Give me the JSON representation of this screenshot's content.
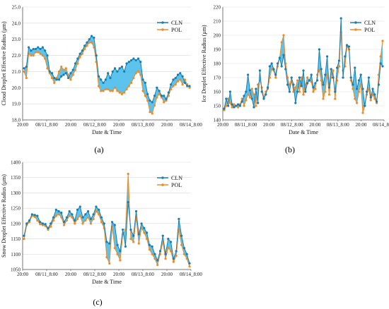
{
  "colors": {
    "cln": "#1a7fb0",
    "pol": "#f08a24",
    "fill": "#3fb8ea",
    "gridline": "#d9d9d9"
  },
  "chart_data": [
    {
      "type": "line",
      "panel_label": "(a)",
      "ylabel": "Cloud Droplet Effective Radius  (μm)",
      "xlabel": "Date & Time",
      "xticks": [
        "20:00",
        "08/11_8:00",
        "20:00",
        "08/12_8:00",
        "20:00",
        "08/13_8:00",
        "20:00",
        "08/14_8:00"
      ],
      "ylim": [
        18.0,
        25.0
      ],
      "yticks": [
        "18.0",
        "19.0",
        "20.0",
        "21.0",
        "22.0",
        "23.0",
        "24.0",
        "25.0"
      ],
      "legend": [
        "CLN",
        "POL"
      ],
      "grid": true,
      "series": [
        {
          "name": "CLN",
          "values": [
            21.2,
            21.3,
            22.5,
            22.3,
            22.4,
            22.4,
            22.5,
            22.4,
            22.5,
            22.3,
            22.0,
            21.0,
            20.9,
            20.6,
            20.5,
            20.5,
            20.7,
            20.8,
            20.9,
            20.6,
            20.9,
            21.1,
            21.5,
            21.8,
            22.1,
            22.3,
            22.6,
            22.8,
            23.0,
            23.2,
            23.1,
            22.0,
            20.7,
            20.5,
            20.3,
            20.5,
            20.9,
            20.6,
            21.0,
            21.2,
            21.0,
            21.2,
            21.3,
            21.0,
            21.5,
            21.6,
            21.7,
            21.8,
            21.7,
            21.8,
            21.6,
            20.5,
            20.3,
            19.6,
            19.2,
            19.1,
            19.5,
            20.0,
            19.8,
            19.5,
            19.5,
            19.3,
            19.7,
            20.2,
            20.5,
            20.6,
            20.8,
            20.9,
            20.7,
            20.3,
            20.1,
            20.1
          ]
        },
        {
          "name": "POL",
          "values": [
            21.0,
            20.6,
            22.1,
            22.0,
            22.0,
            22.2,
            22.2,
            22.1,
            22.0,
            21.8,
            21.2,
            20.9,
            20.6,
            20.3,
            20.6,
            21.0,
            21.3,
            21.1,
            21.2,
            20.8,
            20.5,
            20.8,
            21.1,
            21.5,
            21.9,
            22.1,
            22.4,
            22.6,
            22.8,
            22.8,
            22.5,
            21.6,
            20.1,
            19.8,
            19.8,
            19.9,
            19.9,
            19.8,
            19.8,
            20.0,
            19.8,
            19.7,
            19.6,
            19.7,
            19.9,
            20.1,
            20.3,
            20.6,
            20.9,
            21.0,
            20.8,
            19.8,
            19.5,
            19.2,
            18.5,
            18.4,
            18.9,
            19.4,
            19.6,
            19.4,
            19.1,
            19.2,
            19.5,
            19.9,
            20.1,
            20.2,
            20.4,
            20.5,
            20.2,
            20.5,
            20.2,
            20.0
          ]
        }
      ]
    },
    {
      "type": "line",
      "panel_label": "(b)",
      "ylabel": "Ice Droplet Effective Radius  (μm)",
      "xlabel": "Date & Time",
      "xticks": [
        "20:00",
        "08/11_8:00",
        "20:00",
        "08/12_8:00",
        "20:00",
        "08/13_8:00",
        "20:00",
        "08/14_8:00"
      ],
      "ylim": [
        140,
        220
      ],
      "yticks": [
        "140",
        "150",
        "160",
        "170",
        "180",
        "190",
        "200",
        "210",
        "220"
      ],
      "legend": [
        "CLN",
        "POL"
      ],
      "grid": true,
      "series": [
        {
          "name": "CLN",
          "values": [
            148,
            155,
            150,
            160,
            151,
            149,
            150,
            151,
            150,
            153,
            157,
            160,
            172,
            161,
            155,
            149,
            162,
            152,
            175,
            160,
            155,
            158,
            163,
            178,
            180,
            176,
            172,
            180,
            184,
            178,
            186,
            176,
            165,
            160,
            170,
            165,
            152,
            160,
            170,
            164,
            175,
            160,
            166,
            168,
            172,
            163,
            166,
            168,
            190,
            176,
            165,
            172,
            185,
            163,
            176,
            170,
            160,
            177,
            182,
            212,
            170,
            185,
            193,
            192,
            170,
            165,
            177,
            162,
            168,
            172,
            162,
            150,
            160,
            170,
            156,
            162,
            158,
            153,
            165,
            180,
            178
          ]
        },
        {
          "name": "POL",
          "values": [
            147,
            150,
            155,
            152,
            149,
            151,
            150,
            149,
            151,
            155,
            150,
            154,
            158,
            156,
            162,
            158,
            150,
            165,
            168,
            163,
            156,
            160,
            162,
            170,
            176,
            175,
            170,
            178,
            184,
            195,
            200,
            180,
            170,
            165,
            167,
            160,
            163,
            168,
            160,
            170,
            158,
            165,
            170,
            168,
            167,
            160,
            162,
            172,
            175,
            168,
            155,
            160,
            172,
            158,
            170,
            175,
            155,
            168,
            178,
            202,
            175,
            178,
            192,
            190,
            168,
            162,
            155,
            152,
            160,
            165,
            145,
            150,
            158,
            162,
            154,
            158,
            155,
            152,
            172,
            185,
            196
          ]
        }
      ]
    },
    {
      "type": "line",
      "panel_label": "(c)",
      "ylabel": "Snow Droplet Effective Radius  (μm)",
      "xlabel": "Date & Time",
      "xticks": [
        "20:00",
        "08/11_8:00",
        "20:00",
        "08/12_8:00",
        "20:00",
        "08/13_8:00",
        "20:00",
        "08/14_8:00"
      ],
      "ylim": [
        1050,
        1400
      ],
      "yticks": [
        "1050",
        "1100",
        "1150",
        "1200",
        "1250",
        "1300",
        "1350",
        "1400"
      ],
      "legend": [
        "CLN",
        "POL"
      ],
      "grid": true,
      "series": [
        {
          "name": "CLN",
          "values": [
            1160,
            1200,
            1210,
            1230,
            1228,
            1225,
            1205,
            1200,
            1198,
            1185,
            1200,
            1220,
            1245,
            1240,
            1235,
            1205,
            1220,
            1240,
            1230,
            1210,
            1245,
            1255,
            1220,
            1230,
            1240,
            1215,
            1230,
            1255,
            1245,
            1220,
            1200,
            1140,
            1135,
            1205,
            1195,
            1130,
            1110,
            1180,
            1125,
            1270,
            1180,
            1160,
            1240,
            1165,
            1200,
            1185,
            1170,
            1130,
            1125,
            1100,
            1080,
            1110,
            1160,
            1100,
            1150,
            1140,
            1085,
            1110,
            1215,
            1160,
            1120,
            1100,
            1070
          ]
        },
        {
          "name": "POL",
          "values": [
            1150,
            1195,
            1205,
            1225,
            1222,
            1210,
            1198,
            1195,
            1192,
            1180,
            1190,
            1210,
            1225,
            1230,
            1220,
            1195,
            1210,
            1225,
            1220,
            1200,
            1215,
            1225,
            1200,
            1210,
            1220,
            1200,
            1215,
            1240,
            1230,
            1205,
            1185,
            1090,
            1070,
            1190,
            1120,
            1100,
            1080,
            1165,
            1180,
            1362,
            1150,
            1140,
            1220,
            1135,
            1185,
            1170,
            1150,
            1115,
            1100,
            1085,
            1065,
            1100,
            1140,
            1085,
            1120,
            1110,
            1075,
            1095,
            1180,
            1130,
            1100,
            1085,
            1060
          ]
        }
      ]
    }
  ]
}
